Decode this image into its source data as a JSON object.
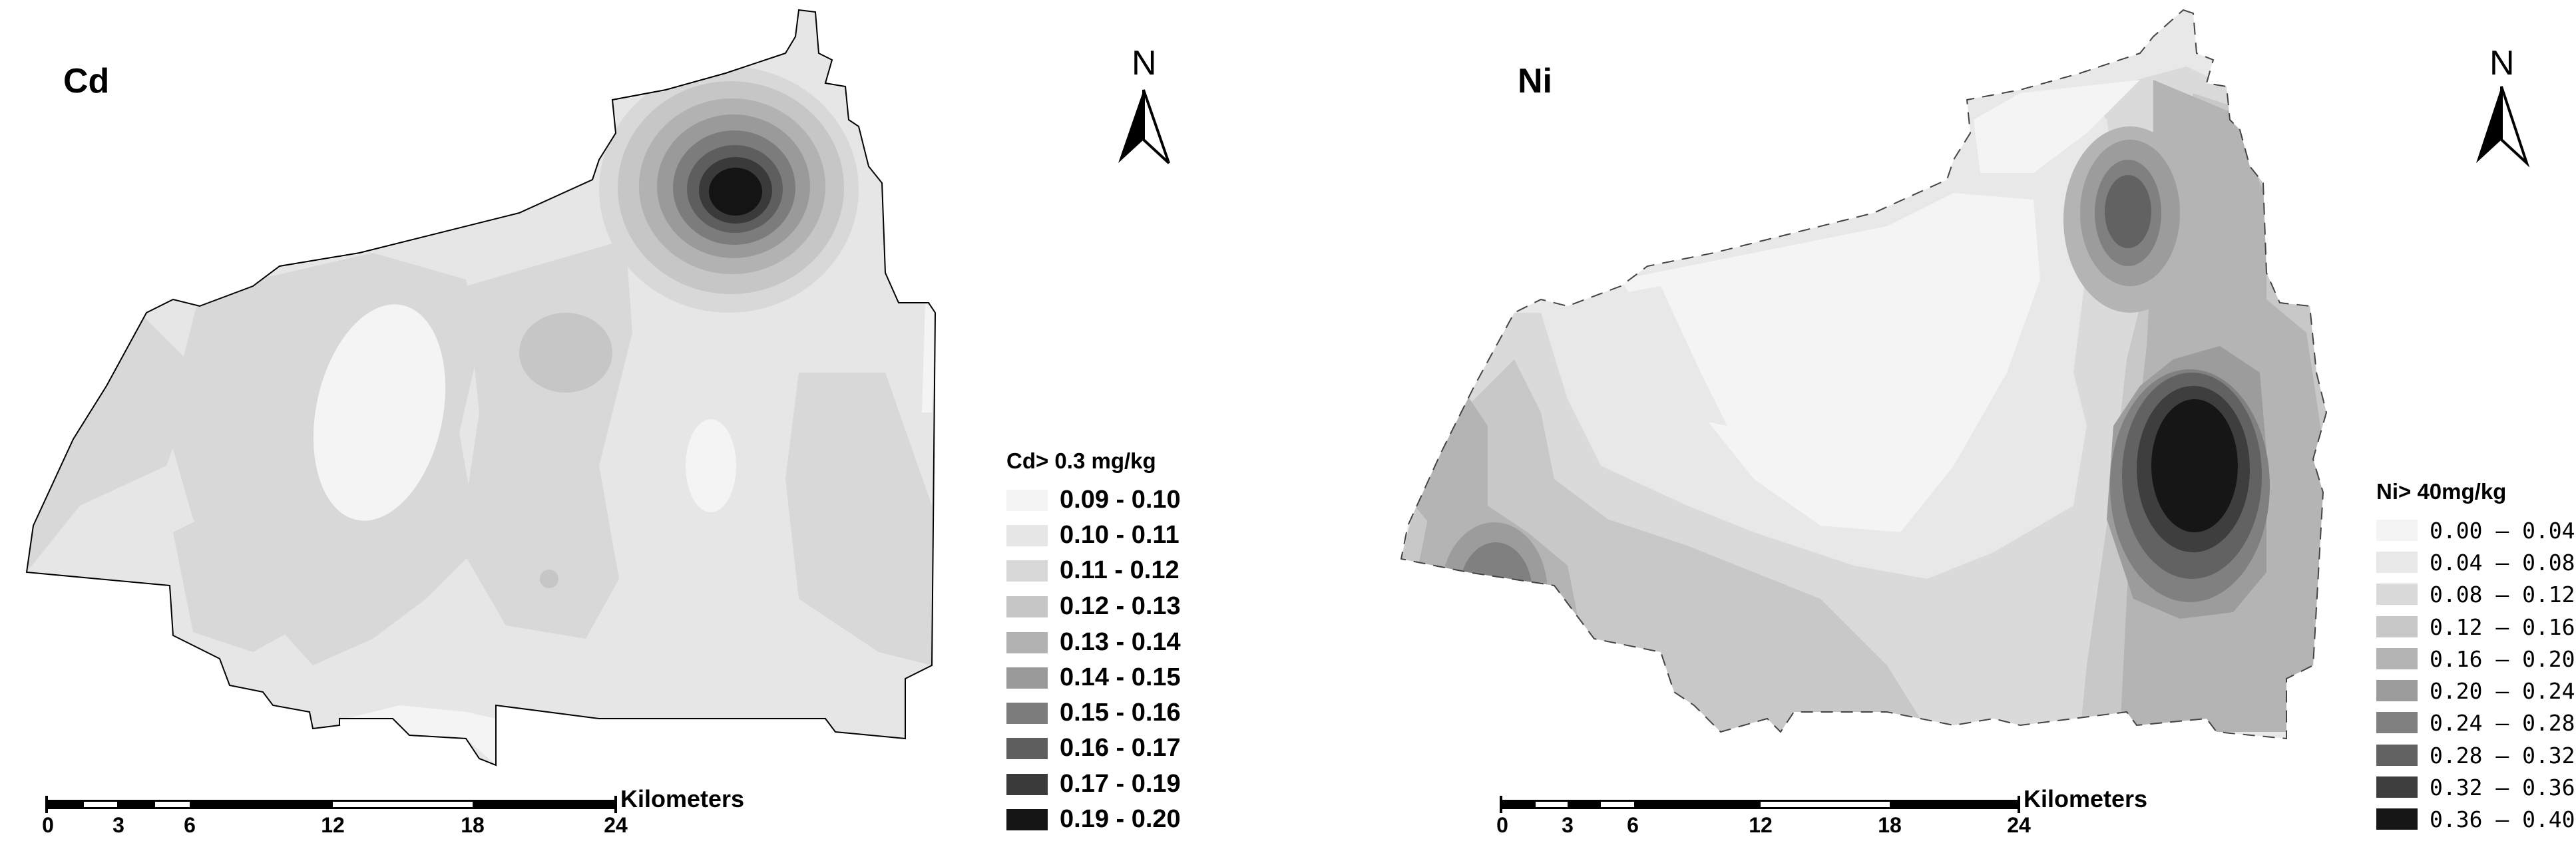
{
  "panels": {
    "cd": {
      "title": "Cd",
      "legend_title": "Cd> 0.3 mg/kg",
      "legend": [
        {
          "label": "0.09 - 0.10",
          "color": "#f4f4f4"
        },
        {
          "label": "0.10 - 0.11",
          "color": "#e6e6e6"
        },
        {
          "label": "0.11 - 0.12",
          "color": "#d8d8d8"
        },
        {
          "label": "0.12 - 0.13",
          "color": "#c6c6c6"
        },
        {
          "label": "0.13 - 0.14",
          "color": "#b2b2b2"
        },
        {
          "label": "0.14 - 0.15",
          "color": "#9a9a9a"
        },
        {
          "label": "0.15 - 0.16",
          "color": "#7c7c7c"
        },
        {
          "label": "0.16 - 0.17",
          "color": "#5e5e5e"
        },
        {
          "label": "0.17 - 0.19",
          "color": "#3a3a3a"
        },
        {
          "label": "0.19 - 0.20",
          "color": "#141414"
        }
      ],
      "north_label": "N",
      "scale_unit": "Kilometers",
      "scale_ticks": [
        "0",
        "3",
        "6",
        "12",
        "18",
        "24"
      ]
    },
    "ni": {
      "title": "Ni",
      "legend_title": "Ni> 40mg/kg",
      "legend": [
        {
          "label": "0.00 – 0.04",
          "color": "#f4f4f4"
        },
        {
          "label": "0.04 – 0.08",
          "color": "#e8e8e8"
        },
        {
          "label": "0.08 – 0.12",
          "color": "#dadada"
        },
        {
          "label": "0.12 – 0.16",
          "color": "#c8c8c8"
        },
        {
          "label": "0.16 – 0.20",
          "color": "#b4b4b4"
        },
        {
          "label": "0.20 – 0.24",
          "color": "#9c9c9c"
        },
        {
          "label": "0.24 – 0.28",
          "color": "#808080"
        },
        {
          "label": "0.28 – 0.32",
          "color": "#626262"
        },
        {
          "label": "0.32 – 0.36",
          "color": "#3e3e3e"
        },
        {
          "label": "0.36 – 0.40",
          "color": "#161616"
        }
      ],
      "north_label": "N",
      "scale_unit": "Kilometers",
      "scale_ticks": [
        "0",
        "3",
        "6",
        "12",
        "18",
        "24"
      ]
    }
  }
}
